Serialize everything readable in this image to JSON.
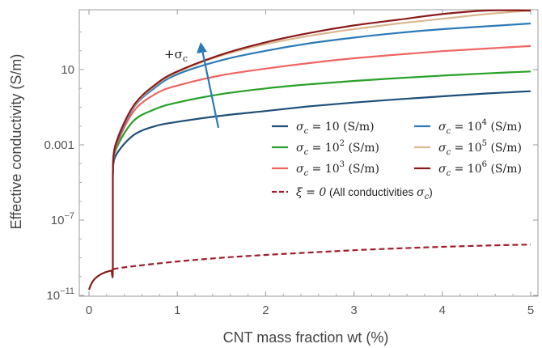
{
  "chart_data": {
    "type": "line",
    "xlabel": "CNT mass fraction wt (%)",
    "ylabel": "Effective conductivity (S/m)",
    "xlim": [
      -0.1,
      5.05
    ],
    "ylog": true,
    "ylim_log10": [
      -11,
      3.5
    ],
    "x_ticks": [
      {
        "value": 0,
        "label": "0"
      },
      {
        "value": 1,
        "label": "1"
      },
      {
        "value": 2,
        "label": "2"
      },
      {
        "value": 3,
        "label": "3"
      },
      {
        "value": 4,
        "label": "4"
      },
      {
        "value": 5,
        "label": "5"
      }
    ],
    "y_ticks": [
      {
        "log10": 1,
        "base": "",
        "label": "10",
        "exp": ""
      },
      {
        "log10": -3,
        "base": "",
        "label": "0.001",
        "exp": ""
      },
      {
        "log10": -7,
        "base": "10",
        "label": "",
        "exp": "−7"
      },
      {
        "log10": -11,
        "base": "10",
        "label": "",
        "exp": "−11"
      }
    ],
    "grid": false,
    "legend_position": "center-right",
    "annotation": {
      "text": "+σc",
      "arrow": "increasing σc"
    },
    "series": [
      {
        "name": "σc = 10 (S/m)",
        "color": "#1f4e79",
        "points": [
          [
            0.27,
            -4.6
          ],
          [
            0.3,
            -3.6
          ],
          [
            0.5,
            -2.5
          ],
          [
            0.75,
            -2.0
          ],
          [
            1.0,
            -1.78
          ],
          [
            1.5,
            -1.45
          ],
          [
            2.0,
            -1.2
          ],
          [
            2.5,
            -0.95
          ],
          [
            3.0,
            -0.75
          ],
          [
            3.5,
            -0.58
          ],
          [
            4.0,
            -0.42
          ],
          [
            4.5,
            -0.27
          ],
          [
            5.0,
            -0.15
          ]
        ]
      },
      {
        "name": "σc = 10² (S/m)",
        "color": "#27a127",
        "points": [
          [
            0.27,
            -4.5
          ],
          [
            0.3,
            -3.3
          ],
          [
            0.5,
            -1.75
          ],
          [
            0.75,
            -1.1
          ],
          [
            1.0,
            -0.75
          ],
          [
            1.5,
            -0.3
          ],
          [
            2.0,
            0.0
          ],
          [
            2.5,
            0.22
          ],
          [
            3.0,
            0.4
          ],
          [
            3.5,
            0.55
          ],
          [
            4.0,
            0.68
          ],
          [
            4.5,
            0.8
          ],
          [
            5.0,
            0.9
          ]
        ]
      },
      {
        "name": "σc = 10³ (S/m)",
        "color": "#ef6461",
        "points": [
          [
            0.27,
            -4.5
          ],
          [
            0.3,
            -3.2
          ],
          [
            0.5,
            -1.25
          ],
          [
            0.75,
            -0.3
          ],
          [
            1.0,
            0.15
          ],
          [
            1.5,
            0.7
          ],
          [
            2.0,
            1.05
          ],
          [
            2.5,
            1.35
          ],
          [
            3.0,
            1.6
          ],
          [
            3.5,
            1.8
          ],
          [
            4.0,
            1.98
          ],
          [
            4.5,
            2.12
          ],
          [
            5.0,
            2.25
          ]
        ]
      },
      {
        "name": "σc = 10⁴ (S/m)",
        "color": "#2a7ab8",
        "points": [
          [
            0.27,
            -4.5
          ],
          [
            0.3,
            -3.1
          ],
          [
            0.5,
            -1.05
          ],
          [
            0.75,
            0.05
          ],
          [
            1.0,
            0.75
          ],
          [
            1.5,
            1.5
          ],
          [
            2.0,
            2.0
          ],
          [
            2.5,
            2.4
          ],
          [
            3.0,
            2.7
          ],
          [
            3.5,
            2.95
          ],
          [
            4.0,
            3.15
          ],
          [
            4.5,
            3.3
          ],
          [
            5.0,
            3.45
          ]
        ]
      },
      {
        "name": "σc = 10⁵ (S/m)",
        "color": "#d9b890",
        "points": [
          [
            0.27,
            -4.5
          ],
          [
            0.3,
            -3.0
          ],
          [
            0.5,
            -1.0
          ],
          [
            0.75,
            0.15
          ],
          [
            1.0,
            0.85
          ],
          [
            1.5,
            1.75
          ],
          [
            2.0,
            2.35
          ],
          [
            2.5,
            2.8
          ],
          [
            3.0,
            3.15
          ],
          [
            3.5,
            3.45
          ],
          [
            4.0,
            3.7
          ],
          [
            4.5,
            3.95
          ],
          [
            5.0,
            4.15
          ]
        ]
      },
      {
        "name": "σc = 10⁶ (S/m)",
        "color": "#8b1a1a",
        "points": [
          [
            0.27,
            -4.5
          ],
          [
            0.3,
            -3.0
          ],
          [
            0.5,
            -0.95
          ],
          [
            0.75,
            0.2
          ],
          [
            1.0,
            0.9
          ],
          [
            1.5,
            1.8
          ],
          [
            2.0,
            2.45
          ],
          [
            2.5,
            2.95
          ],
          [
            3.0,
            3.35
          ],
          [
            3.5,
            3.65
          ],
          [
            4.0,
            3.95
          ],
          [
            4.5,
            4.2
          ],
          [
            5.0,
            4.4
          ]
        ]
      },
      {
        "name": "ξ = 0 (All conductivities σc)",
        "color": "#a11d2b",
        "dashed": true,
        "points": [
          [
            0.27,
            -9.6
          ],
          [
            0.5,
            -9.45
          ],
          [
            1.0,
            -9.2
          ],
          [
            1.5,
            -9.0
          ],
          [
            2.0,
            -8.85
          ],
          [
            2.5,
            -8.72
          ],
          [
            3.0,
            -8.6
          ],
          [
            3.5,
            -8.5
          ],
          [
            4.0,
            -8.42
          ],
          [
            4.5,
            -8.35
          ],
          [
            5.0,
            -8.3
          ]
        ]
      },
      {
        "name": "",
        "color": "#8b1a1a",
        "shared_low": true,
        "points": [
          [
            0.0,
            -10.7
          ],
          [
            0.03,
            -10.35
          ],
          [
            0.07,
            -10.1
          ],
          [
            0.12,
            -9.92
          ],
          [
            0.18,
            -9.78
          ],
          [
            0.25,
            -9.68
          ],
          [
            0.27,
            -9.65
          ],
          [
            0.27,
            -4.5
          ]
        ]
      }
    ]
  },
  "legend": {
    "entries": [
      {
        "label_prefix": "σ",
        "label_sub": "c",
        "label_eq": " = 10",
        "label_sup": "",
        "label_unit": " (S/m)",
        "color": "#1f4e79",
        "dashed": false
      },
      {
        "label_prefix": "σ",
        "label_sub": "c",
        "label_eq": " = 10",
        "label_sup": "4",
        "label_unit": " (S/m)",
        "color": "#2a7ab8",
        "dashed": false
      },
      {
        "label_prefix": "σ",
        "label_sub": "c",
        "label_eq": " = 10",
        "label_sup": "2",
        "label_unit": " (S/m)",
        "color": "#27a127",
        "dashed": false
      },
      {
        "label_prefix": "σ",
        "label_sub": "c",
        "label_eq": " = 10",
        "label_sup": "5",
        "label_unit": " (S/m)",
        "color": "#d9b890",
        "dashed": false
      },
      {
        "label_prefix": "σ",
        "label_sub": "c",
        "label_eq": " = 10",
        "label_sup": "3",
        "label_unit": " (S/m)",
        "color": "#ef6461",
        "dashed": false
      },
      {
        "label_prefix": "σ",
        "label_sub": "c",
        "label_eq": " = 10",
        "label_sup": "6",
        "label_unit": " (S/m)",
        "color": "#8b1a1a",
        "dashed": false
      }
    ],
    "xi_entry": {
      "label_main": "ξ = 0",
      "label_rest": " (All conductivities ",
      "label_sigma": "σ",
      "label_sub": "c",
      "label_close": ")",
      "color": "#a11d2b"
    }
  },
  "annotation_label": {
    "plus": "+σ",
    "sub": "c"
  }
}
